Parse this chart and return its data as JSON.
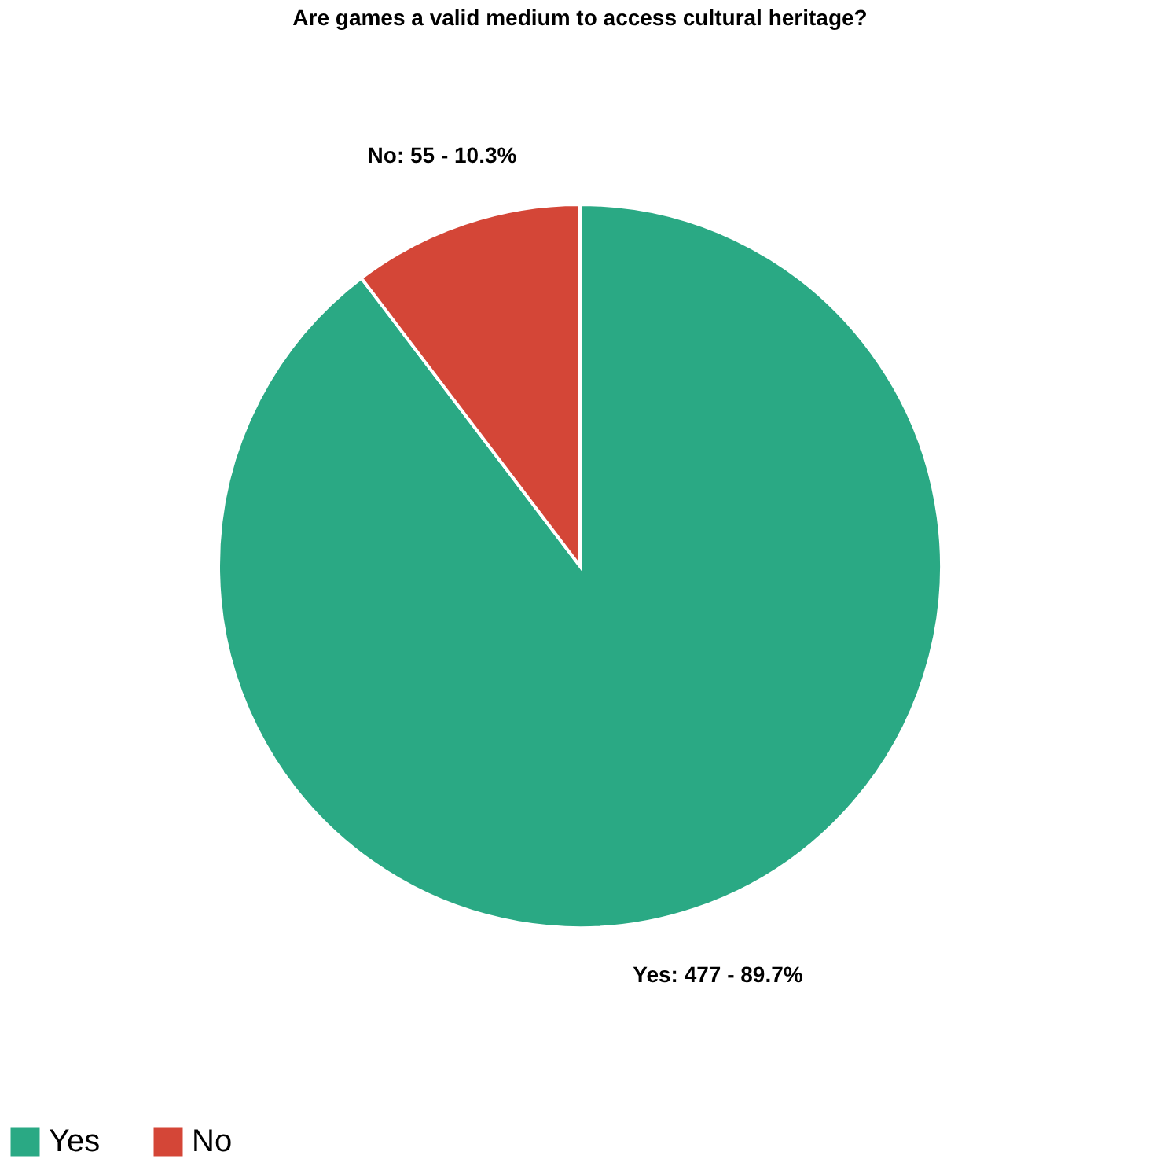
{
  "chart_data": {
    "type": "pie",
    "title": "Are games a valid medium to access cultural heritage?",
    "categories": [
      "Yes",
      "No"
    ],
    "values": [
      477,
      55
    ],
    "colors": [
      "#2aa984",
      "#d44637"
    ],
    "value_labels": [
      "Yes: 477 - 89.7%",
      "No: 55 - 10.3%"
    ],
    "legend": "bottom"
  }
}
